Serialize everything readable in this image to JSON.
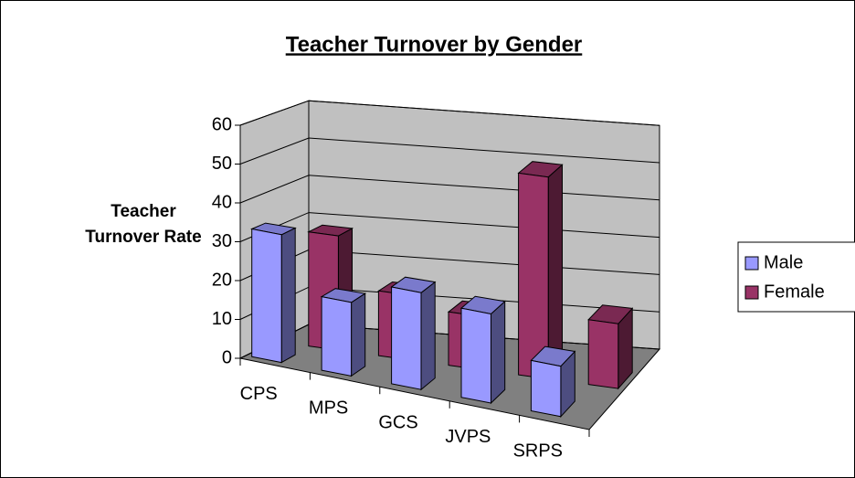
{
  "chart_data": {
    "type": "bar3d",
    "title": "Teacher Turnover by Gender",
    "y_label": "Teacher Turnover Rate",
    "categories": [
      "CPS",
      "MPS",
      "GCS",
      "JVPS",
      "SRPS"
    ],
    "series": [
      {
        "name": "Male",
        "color": "#9999ff",
        "values": [
          33,
          19,
          25,
          23,
          13
        ]
      },
      {
        "name": "Female",
        "color": "#993366",
        "values": [
          30,
          17,
          14,
          53,
          17
        ]
      }
    ],
    "ylim": [
      0,
      60
    ],
    "yticks": [
      0,
      10,
      20,
      30,
      40,
      50,
      60
    ],
    "grid": true,
    "legend": "right"
  }
}
